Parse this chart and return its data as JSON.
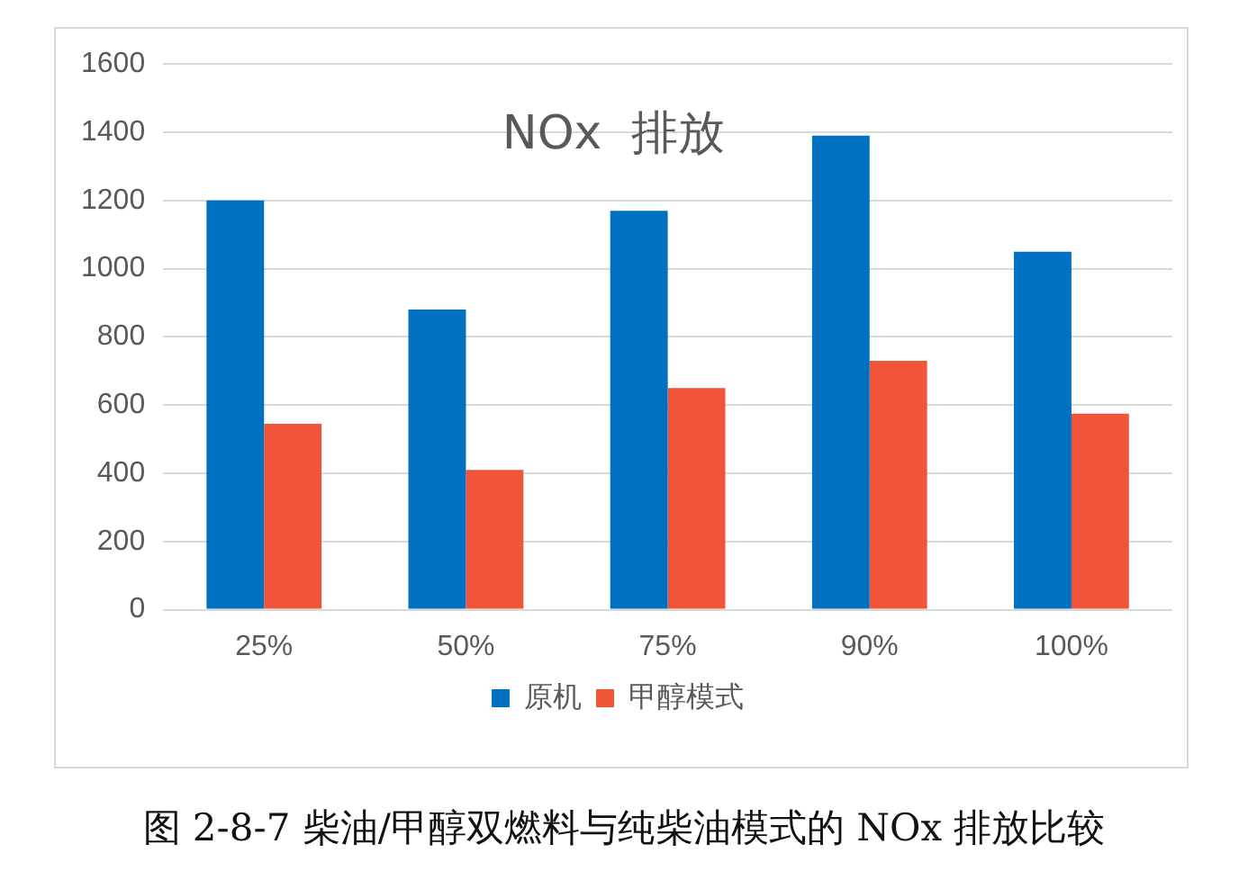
{
  "chart_data": {
    "type": "bar",
    "title": "NOx  排放",
    "categories": [
      "25%",
      "50%",
      "75%",
      "90%",
      "100%"
    ],
    "series": [
      {
        "name": "原机",
        "color": "#0070c0",
        "values": [
          1200,
          880,
          1170,
          1390,
          1050
        ]
      },
      {
        "name": "甲醇模式",
        "color": "#f0553a",
        "values": [
          545,
          410,
          650,
          730,
          575
        ]
      }
    ],
    "ylim": [
      0,
      1600
    ],
    "yticks": [
      0,
      200,
      400,
      600,
      800,
      1000,
      1200,
      1400,
      1600
    ],
    "grid": "y",
    "legend": "bottom",
    "annotations": [
      "图 2-8-7  柴油/甲醇双燃料与纯柴油模式的 NOx 排放比较"
    ]
  }
}
